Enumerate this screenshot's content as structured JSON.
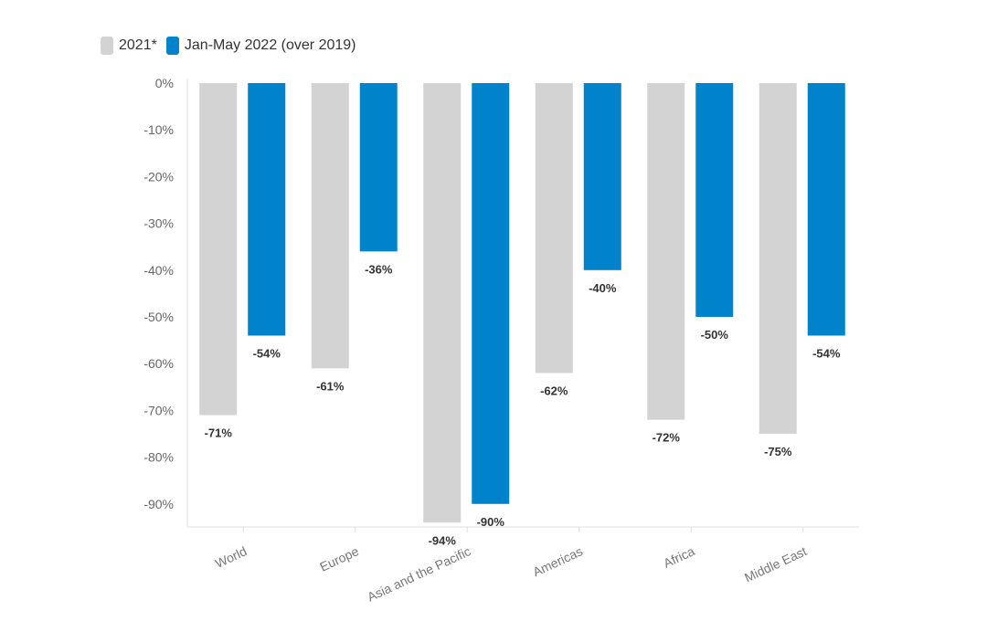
{
  "chart_data": {
    "type": "bar",
    "categories": [
      "World",
      "Europe",
      "Asia and the Pacific",
      "Americas",
      "Africa",
      "Middle East"
    ],
    "series": [
      {
        "name": "2021*",
        "color": "#d3d3d3",
        "values": [
          -71,
          -61,
          -94,
          -62,
          -72,
          -75
        ]
      },
      {
        "name": "Jan-May 2022 (over 2019)",
        "color": "#0083cb",
        "values": [
          -54,
          -36,
          -90,
          -40,
          -50,
          -54
        ]
      }
    ],
    "ylim": [
      -95,
      0
    ],
    "yticks": [
      0,
      -10,
      -20,
      -30,
      -40,
      -50,
      -60,
      -70,
      -80,
      -90
    ],
    "ytick_labels": [
      "0%",
      "-10%",
      "-20%",
      "-30%",
      "-40%",
      "-50%",
      "-60%",
      "-70%",
      "-80%",
      "-90%"
    ],
    "data_labels": [
      [
        "-71%",
        "-61%",
        "-94%",
        "-62%",
        "-72%",
        "-75%"
      ],
      [
        "-54%",
        "-36%",
        "-90%",
        "-40%",
        "-50%",
        "-54%"
      ]
    ],
    "title": "",
    "xlabel": "",
    "ylabel": "",
    "legend_position": "top-left",
    "grid": false
  }
}
